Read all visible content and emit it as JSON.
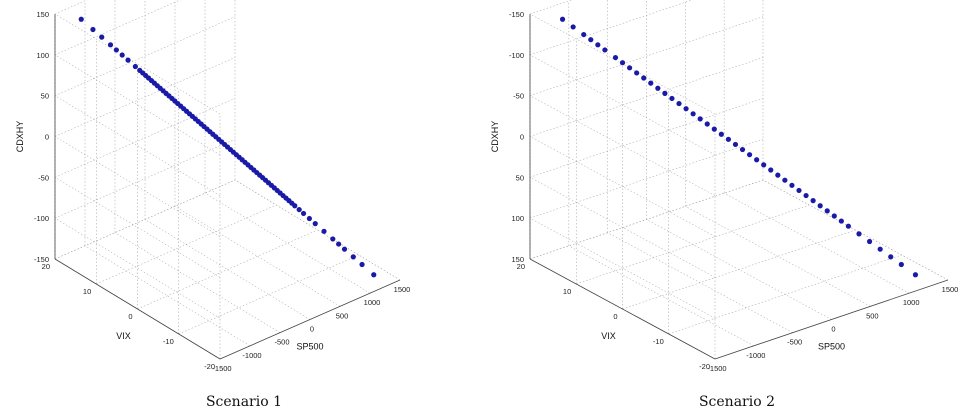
{
  "chart_data": [
    {
      "type": "scatter",
      "projection": "3d",
      "caption": "Scenario 1",
      "xlabel": "SP500",
      "ylabel": "VIX",
      "zlabel": "CDXHY",
      "xlim": [
        -1500,
        1500
      ],
      "ylim": [
        -20,
        20
      ],
      "zlim": [
        -150,
        150
      ],
      "xticks": [
        "-1500",
        "-1000",
        "-500",
        "0",
        "500",
        "1000",
        "1500"
      ],
      "yticks": [
        "-20",
        "-10",
        "0",
        "10",
        "20"
      ],
      "zticks": [
        "-150",
        "-100",
        "-50",
        "0",
        "50",
        "100",
        "150"
      ],
      "grid": true,
      "marker_color": "#1a1aa8",
      "trend": {
        "x_at_start": -1200,
        "x_at_end": 1200,
        "y_at_start": 18,
        "y_at_end": -18,
        "z_at_start": 140,
        "z_at_end": -140
      },
      "points_t": [
        0,
        0.04,
        0.07,
        0.1,
        0.12,
        0.14,
        0.16,
        0.185,
        0.2,
        0.21,
        0.22,
        0.23,
        0.24,
        0.25,
        0.26,
        0.27,
        0.28,
        0.29,
        0.3,
        0.31,
        0.32,
        0.33,
        0.34,
        0.35,
        0.36,
        0.37,
        0.38,
        0.39,
        0.4,
        0.41,
        0.42,
        0.43,
        0.44,
        0.45,
        0.46,
        0.47,
        0.48,
        0.49,
        0.5,
        0.51,
        0.52,
        0.53,
        0.54,
        0.55,
        0.56,
        0.57,
        0.58,
        0.59,
        0.6,
        0.61,
        0.62,
        0.63,
        0.64,
        0.65,
        0.66,
        0.67,
        0.68,
        0.69,
        0.7,
        0.71,
        0.72,
        0.73,
        0.745,
        0.76,
        0.78,
        0.8,
        0.83,
        0.86,
        0.88,
        0.9,
        0.93,
        0.96,
        1.0
      ]
    },
    {
      "type": "scatter",
      "projection": "3d",
      "caption": "Scenario 2",
      "xlabel": "SP500",
      "ylabel": "VIX",
      "zlabel": "CDXHY",
      "xlim": [
        -1500,
        1500
      ],
      "ylim": [
        -20,
        20
      ],
      "zlim": [
        -150,
        150
      ],
      "xticks": [
        "-1500",
        "-1000",
        "-500",
        "0",
        "500",
        "1000",
        "1500"
      ],
      "yticks": [
        "-20",
        "-10",
        "0",
        "10",
        "20"
      ],
      "zticks": [
        "-150",
        "-100",
        "-50",
        "0",
        "50",
        "100",
        "150"
      ],
      "zticks_reversed": true,
      "grid": true,
      "marker_color": "#1a1aa8",
      "trend": {
        "x_at_start": -1200,
        "x_at_end": 1200,
        "y_at_start": 18,
        "y_at_end": -18,
        "z_at_start": 140,
        "z_at_end": -140
      },
      "points_t": [
        0,
        0.03,
        0.06,
        0.08,
        0.1,
        0.12,
        0.15,
        0.17,
        0.19,
        0.21,
        0.23,
        0.25,
        0.27,
        0.29,
        0.31,
        0.33,
        0.35,
        0.37,
        0.39,
        0.41,
        0.43,
        0.45,
        0.47,
        0.49,
        0.51,
        0.53,
        0.55,
        0.57,
        0.59,
        0.61,
        0.63,
        0.65,
        0.67,
        0.69,
        0.71,
        0.73,
        0.75,
        0.77,
        0.79,
        0.81,
        0.84,
        0.87,
        0.9,
        0.93,
        0.96,
        1.0
      ]
    }
  ]
}
